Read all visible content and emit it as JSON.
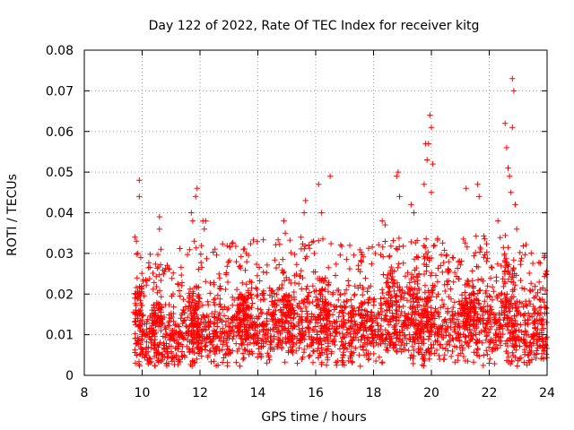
{
  "chart_data": {
    "type": "scatter",
    "title": "Day 122 of 2022, Rate Of TEC Index for receiver kitg",
    "xlabel": "GPS time / hours",
    "ylabel": "ROTI / TECUs",
    "xlim": [
      8,
      24
    ],
    "ylim": [
      0,
      0.08
    ],
    "xticks": [
      8,
      10,
      12,
      14,
      16,
      18,
      20,
      22,
      24
    ],
    "yticks": [
      0,
      0.01,
      0.02,
      0.03,
      0.04,
      0.05,
      0.06,
      0.07,
      0.08
    ],
    "xtick_labels": [
      "8",
      "10",
      "12",
      "14",
      "16",
      "18",
      "20",
      "22",
      "24"
    ],
    "ytick_labels": [
      "0",
      "0.01",
      "0.02",
      "0.03",
      "0.04",
      "0.05",
      "0.06",
      "0.07",
      "0.08"
    ],
    "grid": true,
    "marker": "+",
    "series": [
      {
        "name": "ROTI",
        "color": "#ff0000",
        "data_range": {
          "x": [
            9.75,
            24.0
          ],
          "y": [
            0.002,
            0.073
          ]
        },
        "notable_points": [
          {
            "x": 9.75,
            "y": 0.034
          },
          {
            "x": 9.8,
            "y": 0.033
          },
          {
            "x": 9.85,
            "y": 0.03
          },
          {
            "x": 9.9,
            "y": 0.048
          },
          {
            "x": 9.9,
            "y": 0.044
          },
          {
            "x": 9.95,
            "y": 0.029
          },
          {
            "x": 10.6,
            "y": 0.039
          },
          {
            "x": 10.6,
            "y": 0.036
          },
          {
            "x": 10.65,
            "y": 0.031
          },
          {
            "x": 11.7,
            "y": 0.04
          },
          {
            "x": 11.75,
            "y": 0.038
          },
          {
            "x": 11.8,
            "y": 0.033
          },
          {
            "x": 11.85,
            "y": 0.044
          },
          {
            "x": 11.9,
            "y": 0.046
          },
          {
            "x": 12.1,
            "y": 0.038
          },
          {
            "x": 12.15,
            "y": 0.036
          },
          {
            "x": 12.2,
            "y": 0.038
          },
          {
            "x": 13.5,
            "y": 0.031
          },
          {
            "x": 13.6,
            "y": 0.03
          },
          {
            "x": 14.9,
            "y": 0.038
          },
          {
            "x": 14.95,
            "y": 0.035
          },
          {
            "x": 15.6,
            "y": 0.04
          },
          {
            "x": 15.65,
            "y": 0.043
          },
          {
            "x": 16.1,
            "y": 0.047
          },
          {
            "x": 16.2,
            "y": 0.04
          },
          {
            "x": 16.5,
            "y": 0.049
          },
          {
            "x": 18.3,
            "y": 0.038
          },
          {
            "x": 18.4,
            "y": 0.037
          },
          {
            "x": 18.8,
            "y": 0.049
          },
          {
            "x": 18.85,
            "y": 0.05
          },
          {
            "x": 18.9,
            "y": 0.044
          },
          {
            "x": 19.3,
            "y": 0.042
          },
          {
            "x": 19.4,
            "y": 0.04
          },
          {
            "x": 19.8,
            "y": 0.057
          },
          {
            "x": 19.85,
            "y": 0.053
          },
          {
            "x": 19.9,
            "y": 0.057
          },
          {
            "x": 19.95,
            "y": 0.064
          },
          {
            "x": 20.0,
            "y": 0.061
          },
          {
            "x": 20.05,
            "y": 0.052
          },
          {
            "x": 20.0,
            "y": 0.045
          },
          {
            "x": 19.75,
            "y": 0.047
          },
          {
            "x": 21.2,
            "y": 0.046
          },
          {
            "x": 21.6,
            "y": 0.047
          },
          {
            "x": 21.65,
            "y": 0.044
          },
          {
            "x": 22.3,
            "y": 0.038
          },
          {
            "x": 22.55,
            "y": 0.062
          },
          {
            "x": 22.6,
            "y": 0.056
          },
          {
            "x": 22.65,
            "y": 0.051
          },
          {
            "x": 22.7,
            "y": 0.049
          },
          {
            "x": 22.75,
            "y": 0.045
          },
          {
            "x": 22.8,
            "y": 0.073
          },
          {
            "x": 22.85,
            "y": 0.07
          },
          {
            "x": 22.8,
            "y": 0.061
          },
          {
            "x": 22.9,
            "y": 0.042
          },
          {
            "x": 22.95,
            "y": 0.036
          },
          {
            "x": 23.5,
            "y": 0.021
          },
          {
            "x": 23.9,
            "y": 0.018
          }
        ]
      }
    ]
  }
}
